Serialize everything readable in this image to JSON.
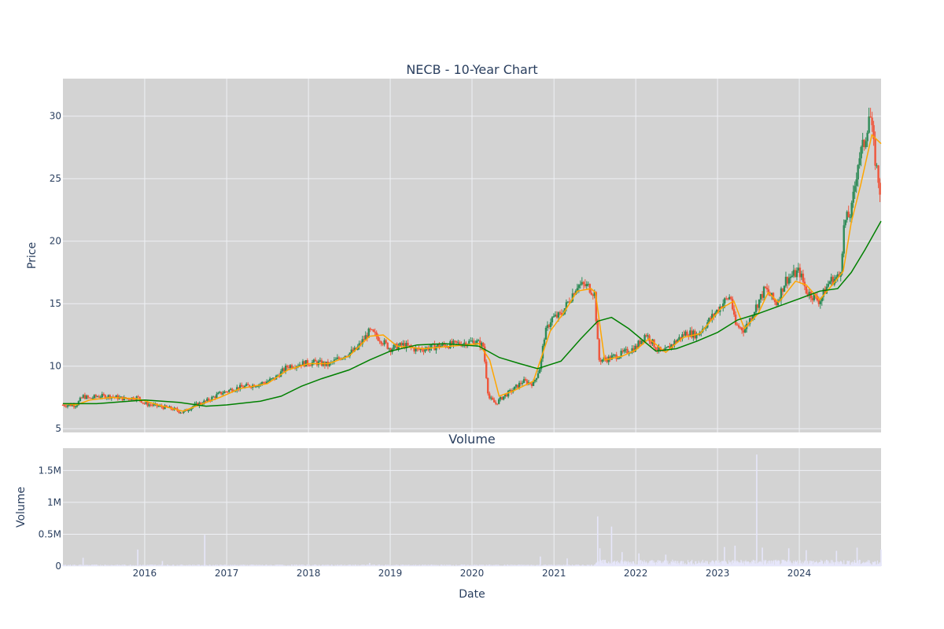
{
  "chart_data": {
    "type": "candlestick",
    "title": "NECB - 10-Year Chart",
    "price_panel": {
      "ylabel": "Price",
      "ylim": [
        4.7,
        33.0
      ],
      "yticks": [
        5,
        10,
        15,
        20,
        25,
        30
      ],
      "ytick_labels": [
        "5",
        "10",
        "15",
        "20",
        "25",
        "30"
      ],
      "background": "#d3d3d3",
      "up_color": "#2e8b57",
      "down_color": "#ef553b",
      "series": [
        {
          "name": "Close",
          "color": "#3a8b5c",
          "points": [
            [
              "2015-01-01",
              6.9
            ],
            [
              "2015-03-01",
              6.9
            ],
            [
              "2015-04-01",
              7.6
            ],
            [
              "2015-05-01",
              7.4
            ],
            [
              "2015-06-01",
              7.6
            ],
            [
              "2015-08-01",
              7.6
            ],
            [
              "2015-10-01",
              7.4
            ],
            [
              "2015-12-01",
              7.5
            ],
            [
              "2016-01-01",
              7.0
            ],
            [
              "2016-03-01",
              6.8
            ],
            [
              "2016-05-01",
              6.6
            ],
            [
              "2016-06-20",
              6.3
            ],
            [
              "2016-08-01",
              6.8
            ],
            [
              "2016-10-01",
              7.2
            ],
            [
              "2016-12-01",
              7.8
            ],
            [
              "2017-02-01",
              8.2
            ],
            [
              "2017-04-01",
              8.4
            ],
            [
              "2017-06-01",
              8.6
            ],
            [
              "2017-08-01",
              9.0
            ],
            [
              "2017-10-01",
              10.0
            ],
            [
              "2017-12-01",
              10.2
            ],
            [
              "2018-02-01",
              10.3
            ],
            [
              "2018-04-01",
              10.1
            ],
            [
              "2018-06-01",
              10.8
            ],
            [
              "2018-08-01",
              11.3
            ],
            [
              "2018-10-01",
              12.8
            ],
            [
              "2018-11-15",
              12.2
            ],
            [
              "2019-01-01",
              11.4
            ],
            [
              "2019-03-01",
              11.7
            ],
            [
              "2019-05-01",
              11.3
            ],
            [
              "2019-08-01",
              11.6
            ],
            [
              "2019-11-01",
              11.8
            ],
            [
              "2020-01-15",
              12.0
            ],
            [
              "2020-02-20",
              11.6
            ],
            [
              "2020-03-15",
              7.5
            ],
            [
              "2020-04-15",
              7.0
            ],
            [
              "2020-05-15",
              7.5
            ],
            [
              "2020-07-01",
              8.1
            ],
            [
              "2020-08-15",
              8.8
            ],
            [
              "2020-10-01",
              8.6
            ],
            [
              "2020-11-01",
              10.0
            ],
            [
              "2020-11-20",
              12.5
            ],
            [
              "2020-12-20",
              13.8
            ],
            [
              "2021-02-01",
              14.1
            ],
            [
              "2021-03-01",
              15.0
            ],
            [
              "2021-04-15",
              16.5
            ],
            [
              "2021-06-01",
              16.4
            ],
            [
              "2021-07-01",
              15.8
            ],
            [
              "2021-07-20",
              10.5
            ],
            [
              "2021-09-01",
              10.6
            ],
            [
              "2021-11-01",
              11.0
            ],
            [
              "2022-01-01",
              11.5
            ],
            [
              "2022-02-15",
              12.6
            ],
            [
              "2022-04-01",
              11.5
            ],
            [
              "2022-05-01",
              11.0
            ],
            [
              "2022-06-15",
              11.8
            ],
            [
              "2022-08-15",
              12.7
            ],
            [
              "2022-10-01",
              12.5
            ],
            [
              "2022-12-01",
              13.8
            ],
            [
              "2023-02-01",
              15.2
            ],
            [
              "2023-03-01",
              15.6
            ],
            [
              "2023-03-20",
              13.3
            ],
            [
              "2023-05-01",
              12.9
            ],
            [
              "2023-06-20",
              14.7
            ],
            [
              "2023-08-01",
              16.2
            ],
            [
              "2023-09-20",
              15.0
            ],
            [
              "2023-11-01",
              16.9
            ],
            [
              "2024-01-01",
              17.6
            ],
            [
              "2024-02-01",
              16.0
            ],
            [
              "2024-04-01",
              15.2
            ],
            [
              "2024-05-15",
              16.8
            ],
            [
              "2024-07-01",
              17.2
            ],
            [
              "2024-07-20",
              21.5
            ],
            [
              "2024-08-20",
              22.3
            ],
            [
              "2024-09-20",
              26.5
            ],
            [
              "2024-10-20",
              28.0
            ],
            [
              "2024-11-10",
              30.5
            ],
            [
              "2024-12-01",
              27.0
            ],
            [
              "2024-12-31",
              23.5
            ]
          ]
        },
        {
          "name": "MA50",
          "color": "#ffa500",
          "points": [
            [
              "2015-01-01",
              7.0
            ],
            [
              "2015-03-01",
              6.9
            ],
            [
              "2015-05-01",
              7.3
            ],
            [
              "2015-08-01",
              7.5
            ],
            [
              "2015-12-01",
              7.4
            ],
            [
              "2016-03-01",
              6.9
            ],
            [
              "2016-06-20",
              6.4
            ],
            [
              "2016-09-01",
              6.9
            ],
            [
              "2016-12-01",
              7.5
            ],
            [
              "2017-03-01",
              8.2
            ],
            [
              "2017-07-01",
              8.6
            ],
            [
              "2017-10-01",
              9.7
            ],
            [
              "2018-01-01",
              10.2
            ],
            [
              "2018-04-01",
              10.2
            ],
            [
              "2018-07-01",
              10.8
            ],
            [
              "2018-10-01",
              12.4
            ],
            [
              "2018-12-01",
              12.5
            ],
            [
              "2019-02-01",
              11.6
            ],
            [
              "2019-06-01",
              11.4
            ],
            [
              "2019-10-01",
              11.6
            ],
            [
              "2020-02-01",
              11.8
            ],
            [
              "2020-03-20",
              10.5
            ],
            [
              "2020-05-01",
              7.6
            ],
            [
              "2020-07-01",
              8.0
            ],
            [
              "2020-10-01",
              8.8
            ],
            [
              "2020-12-15",
              12.8
            ],
            [
              "2021-02-15",
              14.3
            ],
            [
              "2021-04-15",
              16.0
            ],
            [
              "2021-06-15",
              16.2
            ],
            [
              "2021-07-05",
              15.9
            ],
            [
              "2021-08-15",
              10.5
            ],
            [
              "2021-11-01",
              10.8
            ],
            [
              "2022-01-01",
              11.3
            ],
            [
              "2022-03-01",
              12.2
            ],
            [
              "2022-05-15",
              11.1
            ],
            [
              "2022-08-01",
              12.3
            ],
            [
              "2022-10-15",
              12.6
            ],
            [
              "2023-01-15",
              14.6
            ],
            [
              "2023-03-15",
              15.2
            ],
            [
              "2023-05-01",
              13.0
            ],
            [
              "2023-07-01",
              14.2
            ],
            [
              "2023-08-15",
              15.9
            ],
            [
              "2023-10-01",
              15.1
            ],
            [
              "2023-12-15",
              16.8
            ],
            [
              "2024-02-01",
              16.5
            ],
            [
              "2024-04-01",
              15.3
            ],
            [
              "2024-06-01",
              16.6
            ],
            [
              "2024-07-15",
              17.6
            ],
            [
              "2024-08-20",
              21.5
            ],
            [
              "2024-10-01",
              24.5
            ],
            [
              "2024-11-20",
              28.5
            ],
            [
              "2024-12-31",
              27.8
            ]
          ]
        },
        {
          "name": "MA200",
          "color": "#008000",
          "points": [
            [
              "2015-01-01",
              7.0
            ],
            [
              "2015-06-01",
              7.0
            ],
            [
              "2016-01-01",
              7.3
            ],
            [
              "2016-06-01",
              7.1
            ],
            [
              "2016-10-01",
              6.8
            ],
            [
              "2017-01-01",
              6.9
            ],
            [
              "2017-06-01",
              7.2
            ],
            [
              "2017-09-01",
              7.6
            ],
            [
              "2017-12-01",
              8.4
            ],
            [
              "2018-03-01",
              9.0
            ],
            [
              "2018-07-01",
              9.7
            ],
            [
              "2018-10-01",
              10.5
            ],
            [
              "2019-01-01",
              11.2
            ],
            [
              "2019-05-01",
              11.7
            ],
            [
              "2019-09-01",
              11.8
            ],
            [
              "2020-02-01",
              11.6
            ],
            [
              "2020-05-01",
              10.7
            ],
            [
              "2020-08-01",
              10.2
            ],
            [
              "2020-10-20",
              9.8
            ],
            [
              "2021-02-01",
              10.4
            ],
            [
              "2021-05-01",
              12.2
            ],
            [
              "2021-07-15",
              13.6
            ],
            [
              "2021-09-15",
              13.9
            ],
            [
              "2021-12-01",
              13.0
            ],
            [
              "2022-04-01",
              11.2
            ],
            [
              "2022-07-01",
              11.4
            ],
            [
              "2022-10-01",
              12.0
            ],
            [
              "2023-01-01",
              12.7
            ],
            [
              "2023-04-01",
              13.7
            ],
            [
              "2023-07-01",
              14.2
            ],
            [
              "2023-10-01",
              14.8
            ],
            [
              "2024-01-01",
              15.4
            ],
            [
              "2024-04-01",
              16.0
            ],
            [
              "2024-06-20",
              16.2
            ],
            [
              "2024-08-20",
              17.5
            ],
            [
              "2024-10-20",
              19.3
            ],
            [
              "2024-12-31",
              21.6
            ]
          ]
        }
      ]
    },
    "volume_panel": {
      "title": "Volume",
      "ylabel": "Volume",
      "ylim": [
        0,
        1850000
      ],
      "yticks": [
        0,
        500000,
        1000000,
        1500000
      ],
      "ytick_labels": [
        "0",
        "0.5M",
        "1M",
        "1.5M"
      ],
      "background": "#d3d3d3",
      "bar_color": "#e6e6fa",
      "spikes": [
        [
          "2015-04-01",
          130000
        ],
        [
          "2015-12-01",
          260000
        ],
        [
          "2016-03-20",
          80000
        ],
        [
          "2016-09-25",
          490000
        ],
        [
          "2018-10-01",
          50000
        ],
        [
          "2020-11-01",
          150000
        ],
        [
          "2021-03-01",
          120000
        ],
        [
          "2021-07-15",
          780000
        ],
        [
          "2021-07-25",
          280000
        ],
        [
          "2021-09-15",
          620000
        ],
        [
          "2021-11-01",
          220000
        ],
        [
          "2022-01-15",
          200000
        ],
        [
          "2022-05-15",
          180000
        ],
        [
          "2022-11-15",
          80000
        ],
        [
          "2023-02-01",
          300000
        ],
        [
          "2023-03-20",
          320000
        ],
        [
          "2023-06-25",
          1750000
        ],
        [
          "2023-07-20",
          290000
        ],
        [
          "2023-11-15",
          280000
        ],
        [
          "2024-02-01",
          250000
        ],
        [
          "2024-06-15",
          240000
        ],
        [
          "2024-09-15",
          290000
        ],
        [
          "2024-12-31",
          260000
        ]
      ]
    },
    "xlabel": "Date",
    "x_range": [
      "2015-01-01",
      "2024-12-31"
    ],
    "xticks": [
      "2016-01-01",
      "2017-01-01",
      "2018-01-01",
      "2019-01-01",
      "2020-01-01",
      "2021-01-01",
      "2022-01-01",
      "2023-01-01",
      "2024-01-01"
    ],
    "xtick_labels": [
      "2016",
      "2017",
      "2018",
      "2019",
      "2020",
      "2021",
      "2022",
      "2023",
      "2024"
    ],
    "grid": true,
    "legend": "none"
  }
}
